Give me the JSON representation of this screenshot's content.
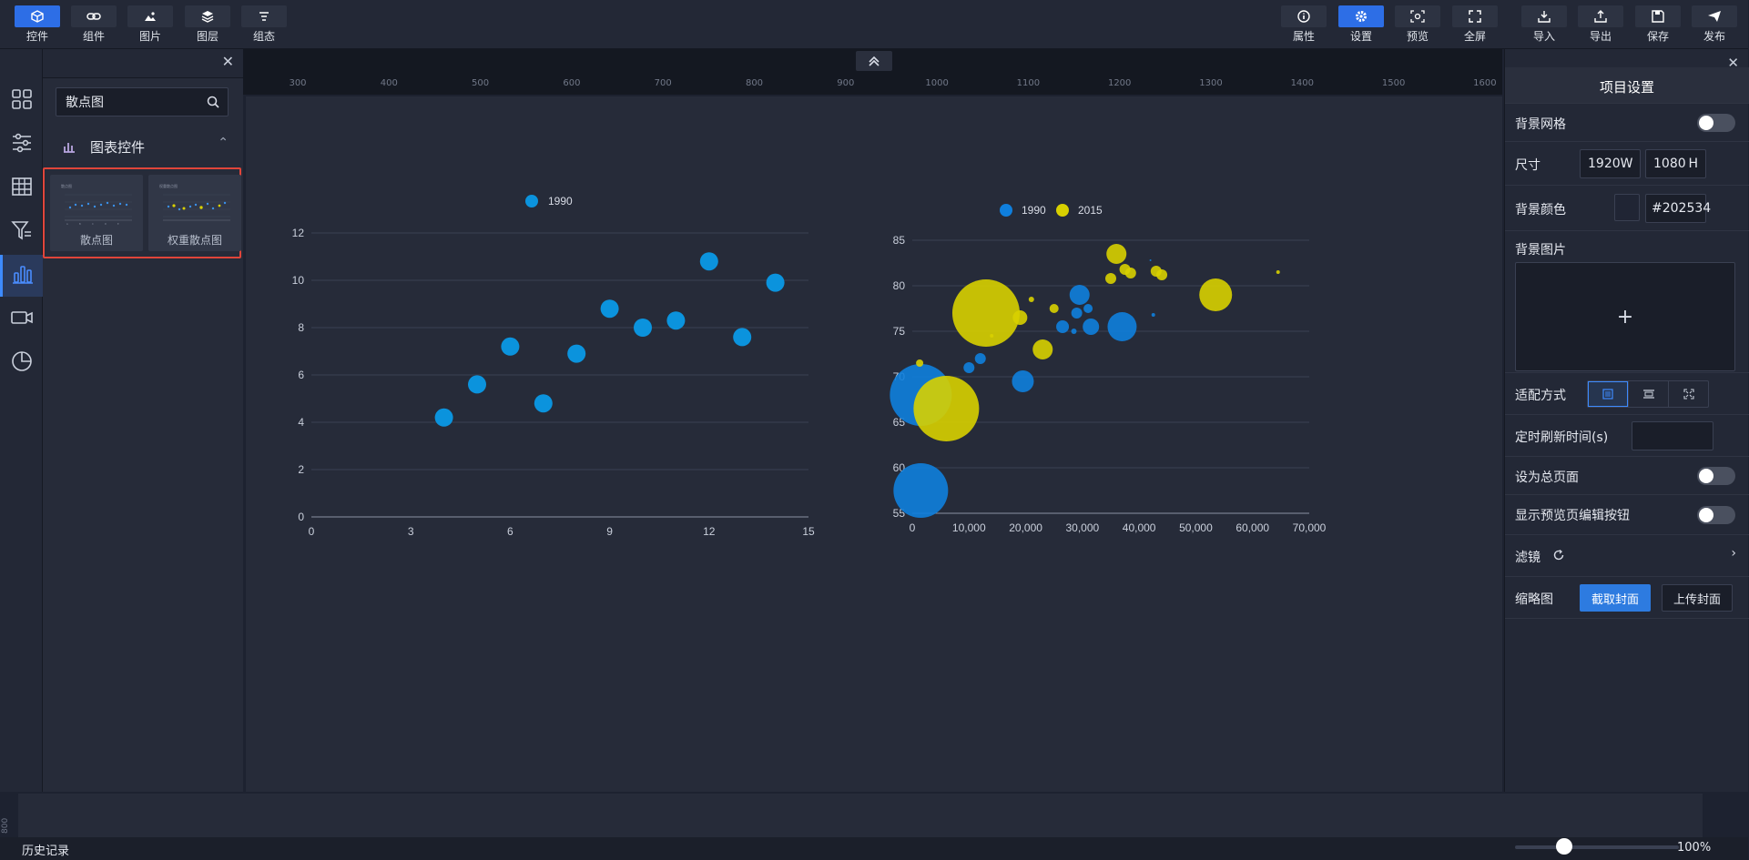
{
  "toolbar": {
    "left": [
      {
        "label": "控件",
        "icon": "cube-icon",
        "active": true
      },
      {
        "label": "组件",
        "icon": "link-icon"
      },
      {
        "label": "图片",
        "icon": "image-icon"
      },
      {
        "label": "图层",
        "icon": "layers-icon"
      },
      {
        "label": "组态",
        "icon": "align-icon"
      }
    ],
    "right": [
      {
        "label": "属性",
        "icon": "info-icon"
      },
      {
        "label": "设置",
        "icon": "gear-icon",
        "active": true
      },
      {
        "label": "预览",
        "icon": "preview-icon"
      },
      {
        "label": "全屏",
        "icon": "fullscreen-icon"
      },
      {
        "label": "导入",
        "icon": "import-icon"
      },
      {
        "label": "导出",
        "icon": "export-icon"
      },
      {
        "label": "保存",
        "icon": "save-icon"
      },
      {
        "label": "发布",
        "icon": "send-icon"
      }
    ]
  },
  "left_panel": {
    "search_value": "散点图",
    "section_title": "图表控件",
    "components": [
      {
        "name": "散点图"
      },
      {
        "name": "权重散点图"
      }
    ]
  },
  "ruler": {
    "marks": [
      "300",
      "400",
      "500",
      "600",
      "700",
      "800",
      "900",
      "1000",
      "1100",
      "1200",
      "1300",
      "1400",
      "1500",
      "1600"
    ],
    "side_mark": "800"
  },
  "right_panel": {
    "title": "项目设置",
    "bg_grid_label": "背景网格",
    "size_label": "尺寸",
    "width_value": "1920",
    "width_unit": "W",
    "height_value": "1080",
    "height_unit": "H",
    "bg_color_label": "背景颜色",
    "bg_color_value": "#202534",
    "bg_image_label": "背景图片",
    "fit_label": "适配方式",
    "refresh_label": "定时刷新时间(s)",
    "homepage_label": "设为总页面",
    "show_edit_label": "显示预览页编辑按钮",
    "filter_label": "滤镜",
    "thumbnail_label": "缩略图",
    "capture_btn": "截取封面",
    "upload_btn": "上传封面"
  },
  "bottom": {
    "history_label": "历史记录",
    "zoom": "100%",
    "zoom_fraction": 0.3
  },
  "chart_data": [
    {
      "type": "scatter",
      "legend": [
        "1990"
      ],
      "color": "#0b93dd",
      "xlim": [
        0,
        15
      ],
      "ylim": [
        0,
        12
      ],
      "x_ticks": [
        0,
        3,
        6,
        9,
        12,
        15
      ],
      "y_ticks": [
        0,
        2,
        4,
        6,
        8,
        10,
        12
      ],
      "points": [
        [
          4,
          4.2
        ],
        [
          5,
          5.6
        ],
        [
          6,
          7.2
        ],
        [
          7,
          4.8
        ],
        [
          8,
          6.9
        ],
        [
          9,
          8.8
        ],
        [
          10,
          8.0
        ],
        [
          11,
          8.3
        ],
        [
          12,
          10.8
        ],
        [
          13,
          7.6
        ],
        [
          14,
          9.9
        ]
      ]
    },
    {
      "type": "scatter",
      "legend": [
        "1990",
        "2015"
      ],
      "colors": [
        "#0f7fdd",
        "#d8d000"
      ],
      "xlim": [
        0,
        70000
      ],
      "ylim": [
        55,
        85
      ],
      "x_ticks": [
        "0",
        "10,000",
        "20,000",
        "30,000",
        "40,000",
        "50,000",
        "60,000",
        "70,000"
      ],
      "y_ticks": [
        55,
        60,
        65,
        70,
        75,
        80,
        85
      ],
      "series": [
        {
          "name": "1990",
          "points": [
            [
              1500,
              68,
              34
            ],
            [
              1500,
              57.5,
              30
            ],
            [
              10000,
              71,
              6
            ],
            [
              12000,
              72,
              6
            ],
            [
              19500,
              69.5,
              12
            ],
            [
              26500,
              75.5,
              7
            ],
            [
              28500,
              75,
              3
            ],
            [
              29000,
              77,
              6
            ],
            [
              29500,
              79,
              11
            ],
            [
              31000,
              77.5,
              5
            ],
            [
              31500,
              75.5,
              9
            ],
            [
              37000,
              75.5,
              16
            ],
            [
              42500,
              76.8,
              2
            ],
            [
              42000,
              82.8,
              1
            ]
          ]
        },
        {
          "name": "2015",
          "points": [
            [
              1300,
              71.5,
              4
            ],
            [
              6000,
              66.5,
              36
            ],
            [
              13000,
              77,
              37
            ],
            [
              14000,
              74.5,
              2
            ],
            [
              19000,
              76.5,
              8
            ],
            [
              21000,
              78.5,
              3
            ],
            [
              23000,
              73,
              11
            ],
            [
              25000,
              77.5,
              5
            ],
            [
              35000,
              80.8,
              6
            ],
            [
              36000,
              83.5,
              11
            ],
            [
              37500,
              81.8,
              6
            ],
            [
              38500,
              81.4,
              6
            ],
            [
              43000,
              81.6,
              6
            ],
            [
              44000,
              81.2,
              6
            ],
            [
              53500,
              79,
              18
            ],
            [
              64500,
              81.5,
              2
            ]
          ]
        }
      ]
    }
  ]
}
